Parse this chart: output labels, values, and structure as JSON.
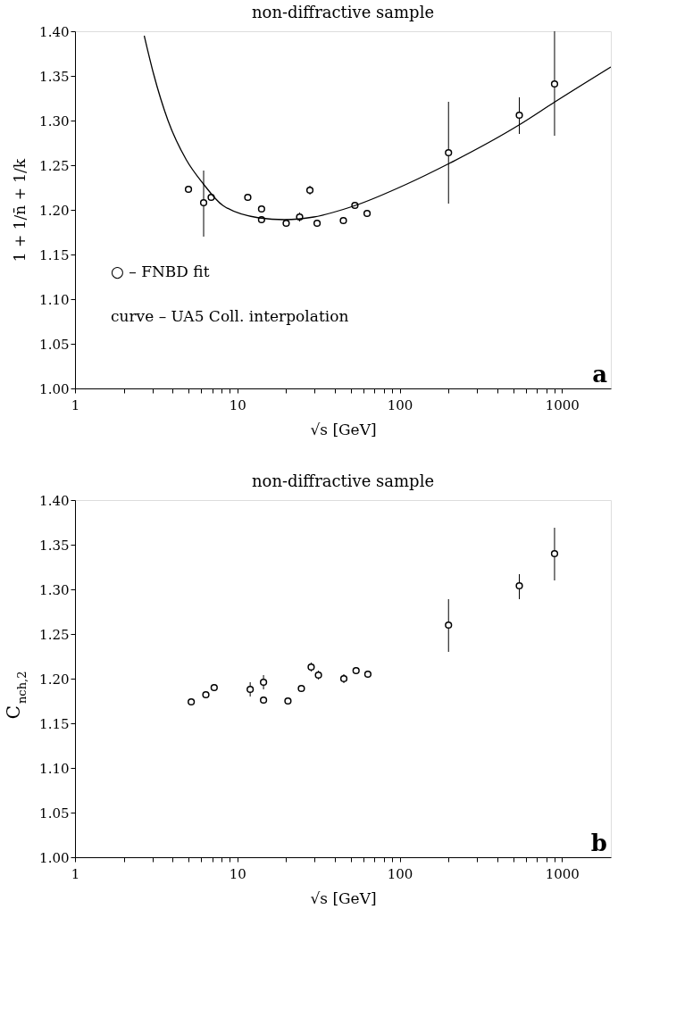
{
  "chart_data": [
    {
      "type": "scatter",
      "title": "non-diffractive sample",
      "xlabel": "√s  [GeV]",
      "ylabel": "1 + 1/n̄ + 1/k",
      "log": "x",
      "grid": false,
      "xlim": [
        1,
        2000
      ],
      "xticks": [
        1,
        {
          "value": 2,
          "label": null
        },
        {
          "value": 3,
          "label": null
        },
        {
          "value": 4,
          "label": null
        },
        {
          "value": 5,
          "label": null
        },
        {
          "value": 6,
          "label": null
        },
        {
          "value": 7,
          "label": null
        },
        {
          "value": 8,
          "label": null
        },
        {
          "value": 9,
          "label": null
        },
        10,
        {
          "value": 20,
          "label": null
        },
        {
          "value": 30,
          "label": null
        },
        {
          "value": 40,
          "label": null
        },
        {
          "value": 50,
          "label": null
        },
        {
          "value": 60,
          "label": null
        },
        {
          "value": 70,
          "label": null
        },
        {
          "value": 80,
          "label": null
        },
        {
          "value": 90,
          "label": null
        },
        100,
        {
          "value": 200,
          "label": null
        },
        {
          "value": 300,
          "label": null
        },
        {
          "value": 400,
          "label": null
        },
        {
          "value": 500,
          "label": null
        },
        {
          "value": 600,
          "label": null
        },
        {
          "value": 700,
          "label": null
        },
        {
          "value": 800,
          "label": null
        },
        {
          "value": 900,
          "label": null
        },
        1000
      ],
      "ylim": [
        1.0,
        1.4
      ],
      "yticks": [
        {
          "value": 1.0,
          "label": "1.00"
        },
        1.05,
        {
          "value": 1.1,
          "label": "1.10"
        },
        1.15,
        {
          "value": 1.2,
          "label": "1.20"
        },
        1.25,
        {
          "value": 1.3,
          "label": "1.30"
        },
        1.35,
        {
          "value": 1.4,
          "label": "1.40"
        }
      ],
      "annotations": [
        "○  –  FNBD fit",
        "curve  –  UA5 Coll. interpolation",
        "a"
      ],
      "series": [
        {
          "marker": "circle",
          "color": "#000000",
          "x": [
            5.0,
            6.2,
            6.9,
            11.6,
            14.1,
            14.1,
            20,
            24.2,
            28,
            31,
            45,
            53,
            63,
            200,
            546,
            900
          ],
          "values": [
            1.223,
            1.208,
            1.214,
            1.214,
            1.201,
            1.189,
            1.185,
            1.192,
            1.222,
            1.185,
            1.188,
            1.205,
            1.196,
            1.264,
            1.306,
            1.341
          ],
          "errors": [
            null,
            [
              1.17,
              1.244
            ],
            0.003,
            0.004,
            0.003,
            0.004,
            0.003,
            0.005,
            0.005,
            0.004,
            0.004,
            0.002,
            0.004,
            [
              1.207,
              1.321
            ],
            [
              1.285,
              1.326
            ],
            [
              1.283,
              1.4
            ]
          ]
        },
        {
          "type": "line",
          "color": "#000000",
          "x": [
            2.67,
            3.04,
            3.74,
            4.85,
            6.18,
            8.13,
            13.6,
            19.6,
            29.6,
            53.5,
            108,
            202,
            543,
            906,
            2000
          ],
          "values": [
            1.395,
            1.353,
            1.3,
            1.256,
            1.229,
            1.205,
            1.191,
            1.189,
            1.192,
            1.205,
            1.228,
            1.252,
            1.295,
            1.321,
            1.36
          ]
        }
      ]
    },
    {
      "type": "scatter",
      "title": "non-diffractive sample",
      "xlabel": "√s  [GeV]",
      "ylabel": "C$_{nch,2}$",
      "log": "x",
      "grid": false,
      "xlim": [
        1,
        2000
      ],
      "xticks": [
        1,
        {
          "value": 2,
          "label": null
        },
        {
          "value": 3,
          "label": null
        },
        {
          "value": 4,
          "label": null
        },
        {
          "value": 5,
          "label": null
        },
        {
          "value": 6,
          "label": null
        },
        {
          "value": 7,
          "label": null
        },
        {
          "value": 8,
          "label": null
        },
        {
          "value": 9,
          "label": null
        },
        10,
        {
          "value": 20,
          "label": null
        },
        {
          "value": 30,
          "label": null
        },
        {
          "value": 40,
          "label": null
        },
        {
          "value": 50,
          "label": null
        },
        {
          "value": 60,
          "label": null
        },
        {
          "value": 70,
          "label": null
        },
        {
          "value": 80,
          "label": null
        },
        {
          "value": 90,
          "label": null
        },
        100,
        {
          "value": 200,
          "label": null
        },
        {
          "value": 300,
          "label": null
        },
        {
          "value": 400,
          "label": null
        },
        {
          "value": 500,
          "label": null
        },
        {
          "value": 600,
          "label": null
        },
        {
          "value": 700,
          "label": null
        },
        {
          "value": 800,
          "label": null
        },
        {
          "value": 900,
          "label": null
        },
        1000
      ],
      "ylim": [
        1.0,
        1.4
      ],
      "yticks": [
        {
          "value": 1.0,
          "label": "1.00"
        },
        1.05,
        {
          "value": 1.1,
          "label": "1.10"
        },
        1.15,
        {
          "value": 1.2,
          "label": "1.20"
        },
        1.25,
        {
          "value": 1.3,
          "label": "1.30"
        },
        1.35,
        {
          "value": 1.4,
          "label": "1.40"
        }
      ],
      "annotations": [
        "b"
      ],
      "series": [
        {
          "marker": "circle",
          "color": "#000000",
          "x": [
            5.2,
            6.4,
            7.2,
            12.0,
            14.5,
            14.5,
            20.5,
            24.8,
            28.5,
            31.6,
            45.3,
            53.9,
            63.7,
            200,
            546,
            900
          ],
          "values": [
            1.174,
            1.182,
            1.19,
            1.188,
            1.196,
            1.176,
            1.175,
            1.189,
            1.213,
            1.204,
            1.2,
            1.209,
            1.205,
            1.26,
            1.304,
            1.34
          ],
          "errors": [
            null,
            0.003,
            0.003,
            0.008,
            0.008,
            0.004,
            null,
            0.003,
            0.005,
            0.005,
            0.005,
            0.004,
            0.004,
            [
              1.23,
              1.289
            ],
            [
              1.289,
              1.317
            ],
            [
              1.31,
              1.369
            ]
          ]
        }
      ]
    }
  ]
}
